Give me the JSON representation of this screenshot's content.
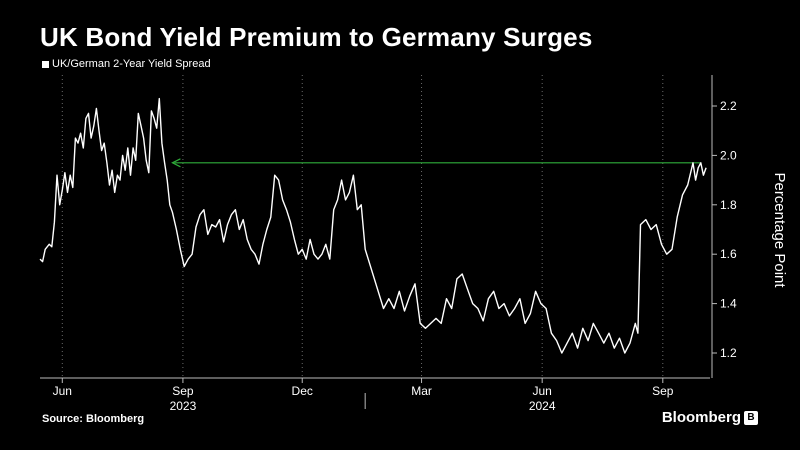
{
  "header": {
    "title": "UK Bond Yield Premium to Germany Surges"
  },
  "footer": {
    "source": "Source: Bloomberg",
    "brand": "Bloomberg",
    "brand_icon": "bloomberg-terminal-icon"
  },
  "colors": {
    "background": "#000000",
    "series": "#ffffff",
    "arrow": "#2fae3a",
    "grid": "#6a6a6a"
  },
  "chart_data": {
    "type": "line",
    "title": "UK Bond Yield Premium to Germany Surges",
    "ylabel": "Percentage Point",
    "xlabel": "",
    "ylim": [
      1.1,
      2.3
    ],
    "y_ticks": [
      1.2,
      1.4,
      1.6,
      1.8,
      2.0,
      2.2
    ],
    "y_axis_side": "right",
    "grid": "vertical dotted",
    "legend": "top-left",
    "x_ticks": [
      {
        "label": "Jun",
        "date": "2023-06-01"
      },
      {
        "label": "Sep",
        "date": "2023-09-01"
      },
      {
        "label": "Dec",
        "date": "2023-12-01"
      },
      {
        "label": "Mar",
        "date": "2024-03-01"
      },
      {
        "label": "Jun",
        "date": "2024-06-01"
      },
      {
        "label": "Sep",
        "date": "2024-09-01"
      }
    ],
    "year_labels": [
      {
        "label": "2023",
        "date": "2023-09-01"
      },
      {
        "label": "2024",
        "date": "2024-06-01"
      }
    ],
    "annotation": {
      "type": "arrow",
      "from": "2024-09-30",
      "to": "2023-08-24",
      "y": 1.97
    },
    "series": [
      {
        "name": "UK/German 2-Year Yield Spread",
        "points": [
          [
            "2023-05-15",
            1.58
          ],
          [
            "2023-05-17",
            1.57
          ],
          [
            "2023-05-19",
            1.62
          ],
          [
            "2023-05-22",
            1.64
          ],
          [
            "2023-05-24",
            1.63
          ],
          [
            "2023-05-26",
            1.73
          ],
          [
            "2023-05-28",
            1.92
          ],
          [
            "2023-05-30",
            1.8
          ],
          [
            "2023-06-01",
            1.86
          ],
          [
            "2023-06-03",
            1.93
          ],
          [
            "2023-06-05",
            1.85
          ],
          [
            "2023-06-07",
            1.92
          ],
          [
            "2023-06-09",
            1.87
          ],
          [
            "2023-06-11",
            2.07
          ],
          [
            "2023-06-13",
            2.05
          ],
          [
            "2023-06-15",
            2.09
          ],
          [
            "2023-06-17",
            2.03
          ],
          [
            "2023-06-19",
            2.15
          ],
          [
            "2023-06-21",
            2.17
          ],
          [
            "2023-06-23",
            2.07
          ],
          [
            "2023-06-25",
            2.12
          ],
          [
            "2023-06-27",
            2.19
          ],
          [
            "2023-06-29",
            2.1
          ],
          [
            "2023-07-01",
            2.02
          ],
          [
            "2023-07-03",
            2.05
          ],
          [
            "2023-07-05",
            1.97
          ],
          [
            "2023-07-07",
            1.88
          ],
          [
            "2023-07-09",
            1.94
          ],
          [
            "2023-07-11",
            1.85
          ],
          [
            "2023-07-13",
            1.92
          ],
          [
            "2023-07-15",
            1.9
          ],
          [
            "2023-07-17",
            2.0
          ],
          [
            "2023-07-19",
            1.94
          ],
          [
            "2023-07-21",
            2.03
          ],
          [
            "2023-07-23",
            1.92
          ],
          [
            "2023-07-25",
            2.03
          ],
          [
            "2023-07-27",
            1.98
          ],
          [
            "2023-07-29",
            2.17
          ],
          [
            "2023-07-31",
            2.12
          ],
          [
            "2023-08-02",
            2.07
          ],
          [
            "2023-08-04",
            1.98
          ],
          [
            "2023-08-06",
            1.93
          ],
          [
            "2023-08-08",
            2.18
          ],
          [
            "2023-08-10",
            2.15
          ],
          [
            "2023-08-12",
            2.11
          ],
          [
            "2023-08-14",
            2.23
          ],
          [
            "2023-08-16",
            2.05
          ],
          [
            "2023-08-18",
            1.97
          ],
          [
            "2023-08-20",
            1.9
          ],
          [
            "2023-08-22",
            1.8
          ],
          [
            "2023-08-24",
            1.77
          ],
          [
            "2023-08-27",
            1.7
          ],
          [
            "2023-08-30",
            1.62
          ],
          [
            "2023-09-02",
            1.55
          ],
          [
            "2023-09-05",
            1.58
          ],
          [
            "2023-09-08",
            1.6
          ],
          [
            "2023-09-11",
            1.71
          ],
          [
            "2023-09-14",
            1.76
          ],
          [
            "2023-09-17",
            1.78
          ],
          [
            "2023-09-20",
            1.68
          ],
          [
            "2023-09-23",
            1.72
          ],
          [
            "2023-09-26",
            1.71
          ],
          [
            "2023-09-29",
            1.74
          ],
          [
            "2023-10-02",
            1.65
          ],
          [
            "2023-10-05",
            1.72
          ],
          [
            "2023-10-08",
            1.76
          ],
          [
            "2023-10-11",
            1.78
          ],
          [
            "2023-10-14",
            1.7
          ],
          [
            "2023-10-17",
            1.74
          ],
          [
            "2023-10-20",
            1.66
          ],
          [
            "2023-10-23",
            1.62
          ],
          [
            "2023-10-26",
            1.6
          ],
          [
            "2023-10-29",
            1.56
          ],
          [
            "2023-11-01",
            1.64
          ],
          [
            "2023-11-04",
            1.7
          ],
          [
            "2023-11-07",
            1.75
          ],
          [
            "2023-11-10",
            1.92
          ],
          [
            "2023-11-13",
            1.9
          ],
          [
            "2023-11-16",
            1.82
          ],
          [
            "2023-11-19",
            1.78
          ],
          [
            "2023-11-22",
            1.73
          ],
          [
            "2023-11-25",
            1.66
          ],
          [
            "2023-11-28",
            1.6
          ],
          [
            "2023-12-01",
            1.62
          ],
          [
            "2023-12-04",
            1.58
          ],
          [
            "2023-12-07",
            1.66
          ],
          [
            "2023-12-10",
            1.6
          ],
          [
            "2023-12-13",
            1.58
          ],
          [
            "2023-12-16",
            1.6
          ],
          [
            "2023-12-19",
            1.64
          ],
          [
            "2023-12-22",
            1.58
          ],
          [
            "2023-12-25",
            1.78
          ],
          [
            "2023-12-28",
            1.82
          ],
          [
            "2023-12-31",
            1.9
          ],
          [
            "2024-01-03",
            1.82
          ],
          [
            "2024-01-06",
            1.85
          ],
          [
            "2024-01-09",
            1.92
          ],
          [
            "2024-01-12",
            1.78
          ],
          [
            "2024-01-15",
            1.8
          ],
          [
            "2024-01-18",
            1.62
          ],
          [
            "2024-02-01",
            1.38
          ],
          [
            "2024-02-05",
            1.42
          ],
          [
            "2024-02-09",
            1.38
          ],
          [
            "2024-02-13",
            1.45
          ],
          [
            "2024-02-17",
            1.37
          ],
          [
            "2024-02-21",
            1.43
          ],
          [
            "2024-02-25",
            1.48
          ],
          [
            "2024-02-29",
            1.32
          ],
          [
            "2024-03-04",
            1.3
          ],
          [
            "2024-03-08",
            1.32
          ],
          [
            "2024-03-12",
            1.34
          ],
          [
            "2024-03-16",
            1.32
          ],
          [
            "2024-03-20",
            1.42
          ],
          [
            "2024-03-24",
            1.38
          ],
          [
            "2024-03-28",
            1.5
          ],
          [
            "2024-04-01",
            1.52
          ],
          [
            "2024-04-05",
            1.46
          ],
          [
            "2024-04-09",
            1.4
          ],
          [
            "2024-04-13",
            1.38
          ],
          [
            "2024-04-17",
            1.33
          ],
          [
            "2024-04-21",
            1.42
          ],
          [
            "2024-04-25",
            1.45
          ],
          [
            "2024-04-29",
            1.38
          ],
          [
            "2024-05-03",
            1.4
          ],
          [
            "2024-05-07",
            1.35
          ],
          [
            "2024-05-11",
            1.38
          ],
          [
            "2024-05-15",
            1.42
          ],
          [
            "2024-05-19",
            1.32
          ],
          [
            "2024-05-23",
            1.36
          ],
          [
            "2024-05-27",
            1.45
          ],
          [
            "2024-05-31",
            1.4
          ],
          [
            "2024-06-04",
            1.38
          ],
          [
            "2024-06-08",
            1.28
          ],
          [
            "2024-06-12",
            1.25
          ],
          [
            "2024-06-16",
            1.2
          ],
          [
            "2024-06-20",
            1.24
          ],
          [
            "2024-06-24",
            1.28
          ],
          [
            "2024-06-28",
            1.22
          ],
          [
            "2024-07-02",
            1.3
          ],
          [
            "2024-07-06",
            1.25
          ],
          [
            "2024-07-10",
            1.32
          ],
          [
            "2024-07-14",
            1.28
          ],
          [
            "2024-07-18",
            1.24
          ],
          [
            "2024-07-22",
            1.28
          ],
          [
            "2024-07-26",
            1.22
          ],
          [
            "2024-07-30",
            1.26
          ],
          [
            "2024-08-03",
            1.2
          ],
          [
            "2024-08-07",
            1.24
          ],
          [
            "2024-08-11",
            1.32
          ],
          [
            "2024-08-13",
            1.28
          ],
          [
            "2024-08-15",
            1.72
          ],
          [
            "2024-08-19",
            1.74
          ],
          [
            "2024-08-23",
            1.7
          ],
          [
            "2024-08-27",
            1.72
          ],
          [
            "2024-08-31",
            1.64
          ],
          [
            "2024-09-04",
            1.6
          ],
          [
            "2024-09-08",
            1.62
          ],
          [
            "2024-09-12",
            1.75
          ],
          [
            "2024-09-16",
            1.84
          ],
          [
            "2024-09-20",
            1.88
          ],
          [
            "2024-09-24",
            1.97
          ],
          [
            "2024-09-26",
            1.9
          ],
          [
            "2024-09-28",
            1.95
          ],
          [
            "2024-09-30",
            1.97
          ],
          [
            "2024-10-02",
            1.92
          ],
          [
            "2024-10-04",
            1.95
          ]
        ]
      }
    ]
  }
}
